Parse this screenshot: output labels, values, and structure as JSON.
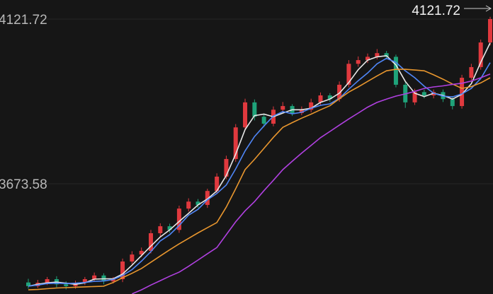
{
  "chart_data": {
    "type": "candlestick",
    "ylim": [
      3373.6,
      4173.6
    ],
    "yticks": [
      4121.72,
      3673.58
    ],
    "grid": true,
    "last_price": 4121.72,
    "up_color": "#e0393e",
    "down_color": "#1fa37a",
    "open": [
      3405,
      3395,
      3404,
      3414,
      3400,
      3395,
      3404,
      3414,
      3424,
      3408,
      3414,
      3462,
      3481,
      3491,
      3539,
      3558,
      3548,
      3606,
      3625,
      3616,
      3654,
      3693,
      3741,
      3827,
      3895,
      3856,
      3837,
      3875,
      3885,
      3866,
      3875,
      3895,
      3914,
      3904,
      3943,
      4000,
      4010,
      4019,
      4029,
      4019,
      3943,
      3895,
      3923,
      3914,
      3923,
      3904,
      3885,
      3962,
      3991,
      4058
    ],
    "high": [
      3415,
      3412,
      3420,
      3422,
      3408,
      3410,
      3420,
      3432,
      3430,
      3420,
      3470,
      3490,
      3500,
      3548,
      3566,
      3565,
      3614,
      3634,
      3632,
      3660,
      3702,
      3750,
      3836,
      3905,
      3903,
      3864,
      3884,
      3896,
      3890,
      3884,
      3905,
      3922,
      3920,
      3952,
      4010,
      4020,
      4028,
      4040,
      4035,
      4025,
      3950,
      3932,
      3930,
      3930,
      3930,
      3912,
      3970,
      4000,
      4066,
      4128
    ],
    "low": [
      3388,
      3390,
      3398,
      3392,
      3386,
      3388,
      3398,
      3408,
      3400,
      3402,
      3406,
      3455,
      3474,
      3484,
      3530,
      3540,
      3540,
      3598,
      3608,
      3608,
      3646,
      3686,
      3733,
      3818,
      3846,
      3828,
      3830,
      3868,
      3858,
      3860,
      3868,
      3888,
      3896,
      3897,
      3936,
      3992,
      4002,
      4012,
      4012,
      3936,
      3880,
      3888,
      3906,
      3906,
      3896,
      3876,
      3878,
      3955,
      3984,
      4050
    ],
    "close": [
      3395,
      3404,
      3414,
      3400,
      3395,
      3404,
      3414,
      3424,
      3408,
      3414,
      3462,
      3481,
      3491,
      3539,
      3558,
      3548,
      3606,
      3625,
      3616,
      3654,
      3693,
      3741,
      3827,
      3895,
      3856,
      3837,
      3875,
      3885,
      3866,
      3875,
      3895,
      3914,
      3904,
      3943,
      4000,
      4010,
      4019,
      4029,
      4019,
      3943,
      3895,
      3923,
      3914,
      3923,
      3904,
      3885,
      3962,
      3991,
      4058,
      4121.72
    ],
    "series": [
      {
        "color": "#e8e8e8",
        "values": [
          3395,
          3400,
          3404,
          3406,
          3403,
          3400,
          3404,
          3414,
          3415,
          3415,
          3428,
          3452,
          3478,
          3504,
          3529,
          3548,
          3571,
          3593,
          3616,
          3632,
          3654,
          3696,
          3754,
          3821,
          3859,
          3863,
          3856,
          3866,
          3875,
          3875,
          3879,
          3895,
          3904,
          3920,
          3949,
          3984,
          4010,
          4019,
          4022,
          3997,
          3952,
          3920,
          3911,
          3920,
          3914,
          3904,
          3917,
          3946,
          4004,
          4057
        ]
      },
      {
        "color": "#4f86f7",
        "values": [
          3395,
          3398,
          3402,
          3403,
          3402,
          3403,
          3405,
          3408,
          3409,
          3413,
          3424,
          3440,
          3463,
          3489,
          3518,
          3535,
          3560,
          3588,
          3604,
          3630,
          3647,
          3670,
          3714,
          3763,
          3802,
          3831,
          3858,
          3870,
          3864,
          3868,
          3879,
          3887,
          3891,
          3906,
          3931,
          3954,
          3975,
          4000,
          4015,
          4004,
          3981,
          3962,
          3939,
          3920,
          3912,
          3910,
          3918,
          3933,
          3960,
          4003
        ]
      },
      {
        "color": "#e8962e",
        "values": [
          3385,
          3386,
          3388,
          3390,
          3391,
          3392,
          3393,
          3394,
          3395,
          3405,
          3418,
          3430,
          3443,
          3460,
          3477,
          3494,
          3510,
          3525,
          3540,
          3554,
          3568,
          3610,
          3660,
          3712,
          3740,
          3770,
          3800,
          3827,
          3840,
          3852,
          3863,
          3875,
          3886,
          3905,
          3923,
          3937,
          3952,
          3967,
          3981,
          3985,
          3985,
          3983,
          3981,
          3970,
          3958,
          3945,
          3933,
          3938,
          3948,
          3962
        ]
      },
      {
        "color": "#b040e0",
        "values": [
          null,
          null,
          null,
          null,
          null,
          null,
          null,
          null,
          null,
          null,
          null,
          3374,
          3385,
          3398,
          3410,
          3422,
          3433,
          3449,
          3466,
          3483,
          3500,
          3535,
          3570,
          3600,
          3625,
          3655,
          3683,
          3712,
          3735,
          3757,
          3778,
          3799,
          3816,
          3833,
          3850,
          3866,
          3882,
          3895,
          3904,
          3912,
          3918,
          3925,
          3933,
          3937,
          3940,
          3944,
          3947,
          3953,
          3962,
          3972
        ]
      }
    ]
  }
}
